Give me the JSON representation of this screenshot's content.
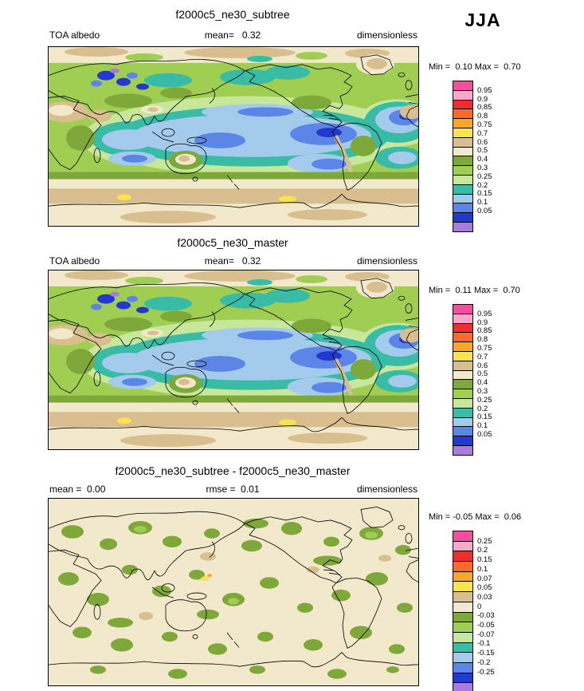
{
  "season_label": "JJA",
  "palette": [
    "#F0519E",
    "#F9A7CB",
    "#ED2D2E",
    "#FC6A2B",
    "#FCA629",
    "#FBE34D",
    "#D9BE8F",
    "#F2E8CB",
    "#7FA83B",
    "#A0CE53",
    "#C7E79A",
    "#38BCA6",
    "#A4CBEC",
    "#5C85E8",
    "#2338CF",
    "#A87BDC"
  ],
  "panels": [
    {
      "title": "f2000c5_ne30_subtree",
      "left": "TOA albedo",
      "center": "mean=   0.32",
      "right": "dimensionless",
      "stats": "Min =  0.10 Max =  0.70",
      "legend_values": [
        "0.95",
        "0.9",
        "0.85",
        "0.8",
        "0.75",
        "0.7",
        "0.6",
        "0.5",
        "0.4",
        "0.3",
        "0.25",
        "0.2",
        "0.15",
        "0.1",
        "0.05"
      ]
    },
    {
      "title": "f2000c5_ne30_master",
      "left": "TOA albedo",
      "center": "mean=   0.32",
      "right": "dimensionless",
      "stats": "Min =  0.11 Max =  0.70",
      "legend_values": [
        "0.95",
        "0.9",
        "0.85",
        "0.8",
        "0.75",
        "0.7",
        "0.6",
        "0.5",
        "0.4",
        "0.3",
        "0.25",
        "0.2",
        "0.15",
        "0.1",
        "0.05"
      ]
    },
    {
      "title": "f2000c5_ne30_subtree - f2000c5_ne30_master",
      "left": "mean =  0.00",
      "center": "rmse =  0.01",
      "right": "dimensionless",
      "stats": "Min = -0.05 Max =  0.06",
      "legend_values": [
        "0.25",
        "0.2",
        "0.15",
        "0.1",
        "0.07",
        "0.05",
        "0.03",
        "0",
        "-0.03",
        "-0.05",
        "-0.07",
        "-0.1",
        "-0.15",
        "-0.2",
        "-0.25"
      ]
    }
  ],
  "chart_data": [
    {
      "type": "heatmap",
      "subtype": "global filled-contour map (equirectangular, Pacific-centered 0-360E)",
      "title": "f2000c5_ne30_subtree",
      "variable": "TOA albedo",
      "units": "dimensionless",
      "season": "JJA",
      "mean": 0.32,
      "min": 0.1,
      "max": 0.7,
      "contour_levels": [
        0.05,
        0.1,
        0.15,
        0.2,
        0.25,
        0.3,
        0.4,
        0.5,
        0.6,
        0.7,
        0.75,
        0.8,
        0.85,
        0.9,
        0.95
      ],
      "legend_position": "right",
      "legend_colors_high_to_low": [
        "#F0519E",
        "#F9A7CB",
        "#ED2D2E",
        "#FC6A2B",
        "#FCA629",
        "#FBE34D",
        "#D9BE8F",
        "#F2E8CB",
        "#7FA83B",
        "#A0CE53",
        "#C7E79A",
        "#38BCA6",
        "#A4CBEC",
        "#5C85E8",
        "#2338CF",
        "#A87BDC"
      ]
    },
    {
      "type": "heatmap",
      "subtype": "global filled-contour map (equirectangular, Pacific-centered 0-360E)",
      "title": "f2000c5_ne30_master",
      "variable": "TOA albedo",
      "units": "dimensionless",
      "season": "JJA",
      "mean": 0.32,
      "min": 0.11,
      "max": 0.7,
      "contour_levels": [
        0.05,
        0.1,
        0.15,
        0.2,
        0.25,
        0.3,
        0.4,
        0.5,
        0.6,
        0.7,
        0.75,
        0.8,
        0.85,
        0.9,
        0.95
      ],
      "legend_position": "right",
      "legend_colors_high_to_low": [
        "#F0519E",
        "#F9A7CB",
        "#ED2D2E",
        "#FC6A2B",
        "#FCA629",
        "#FBE34D",
        "#D9BE8F",
        "#F2E8CB",
        "#7FA83B",
        "#A0CE53",
        "#C7E79A",
        "#38BCA6",
        "#A4CBEC",
        "#5C85E8",
        "#2338CF",
        "#A87BDC"
      ]
    },
    {
      "type": "heatmap",
      "subtype": "global filled-contour difference map (equirectangular, Pacific-centered 0-360E)",
      "title": "f2000c5_ne30_subtree - f2000c5_ne30_master",
      "units": "dimensionless",
      "season": "JJA",
      "mean": 0.0,
      "rmse": 0.01,
      "min": -0.05,
      "max": 0.06,
      "contour_levels": [
        -0.25,
        -0.2,
        -0.15,
        -0.1,
        -0.07,
        -0.05,
        -0.03,
        0,
        0.03,
        0.05,
        0.07,
        0.1,
        0.15,
        0.2,
        0.25
      ],
      "legend_position": "right",
      "legend_colors_high_to_low": [
        "#F0519E",
        "#F9A7CB",
        "#ED2D2E",
        "#FC6A2B",
        "#FCA629",
        "#FBE34D",
        "#D9BE8F",
        "#F2E8CB",
        "#7FA83B",
        "#A0CE53",
        "#C7E79A",
        "#38BCA6",
        "#A4CBEC",
        "#5C85E8",
        "#2338CF",
        "#A87BDC"
      ]
    }
  ]
}
